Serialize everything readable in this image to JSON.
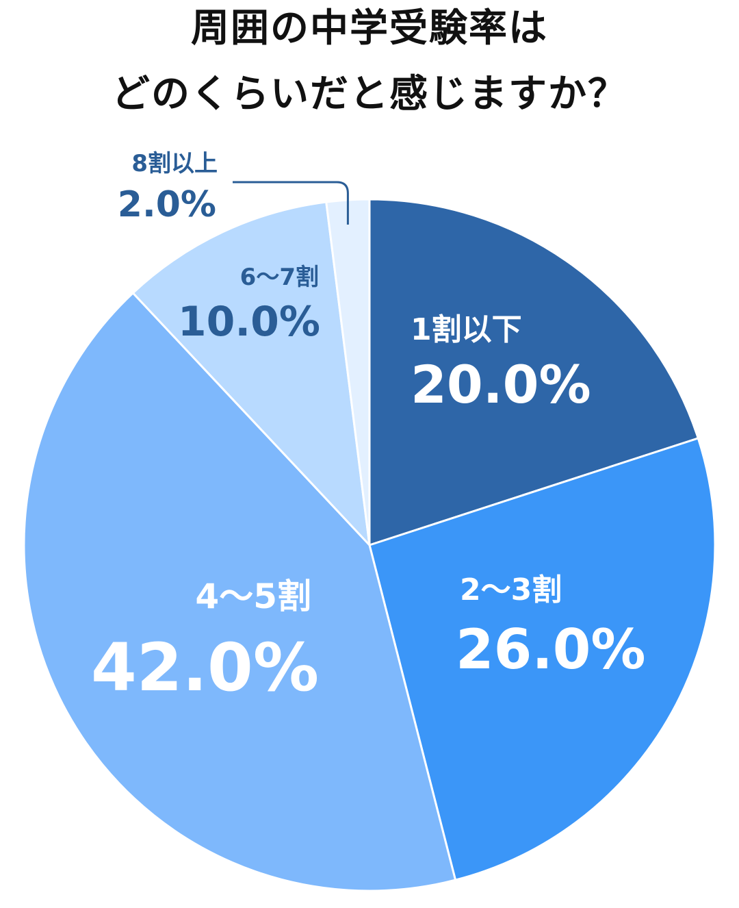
{
  "title": {
    "line1": "周囲の中学受験率は",
    "line2": "どのくらいだと感じますか？"
  },
  "chart_data": {
    "type": "pie",
    "title": "周囲の中学受験率はどのくらいだと感じますか？",
    "start": "12 o'clock, clockwise",
    "slices": [
      {
        "label": "1割以下",
        "value": 20.0,
        "value_label": "20.0%",
        "color": "#2e66a8",
        "text_color": "#ffffff"
      },
      {
        "label": "2～3割",
        "value": 26.0,
        "value_label": "26.0%",
        "color": "#3b96f8",
        "text_color": "#ffffff"
      },
      {
        "label": "4～5割",
        "value": 42.0,
        "value_label": "42.0%",
        "color": "#7eb8fc",
        "text_color": "#ffffff"
      },
      {
        "label": "6～7割",
        "value": 10.0,
        "value_label": "10.0%",
        "color": "#b8daff",
        "text_color": "#2a5d96"
      },
      {
        "label": "8割以上",
        "value": 2.0,
        "value_label": "2.0%",
        "color": "#e3f0ff",
        "text_color": "#2a5d96",
        "callout": true
      }
    ]
  }
}
